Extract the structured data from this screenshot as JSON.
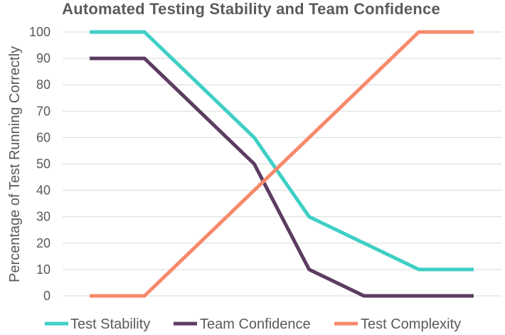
{
  "chart_data": {
    "type": "line",
    "title": "Automated Testing Stability and Team Confidence",
    "xlabel": "",
    "ylabel": "Percentage of Test Running Correctly",
    "ylim": [
      0,
      100
    ],
    "yticks": [
      0,
      10,
      20,
      30,
      40,
      50,
      60,
      70,
      80,
      90,
      100
    ],
    "grid": true,
    "legend_position": "bottom",
    "x": [
      1,
      2,
      3,
      4,
      5,
      6,
      7,
      8
    ],
    "series": [
      {
        "name": "Test Stability",
        "color": "#3ecfc5",
        "values": [
          100,
          100,
          80,
          60,
          30,
          20,
          10,
          10
        ]
      },
      {
        "name": "Team Confidence",
        "color": "#5b3d60",
        "values": [
          90,
          90,
          70,
          50,
          10,
          0,
          0,
          0
        ]
      },
      {
        "name": "Test Complexity",
        "color": "#f7896b",
        "values": [
          0,
          0,
          20,
          40,
          60,
          80,
          100,
          100
        ]
      }
    ]
  }
}
